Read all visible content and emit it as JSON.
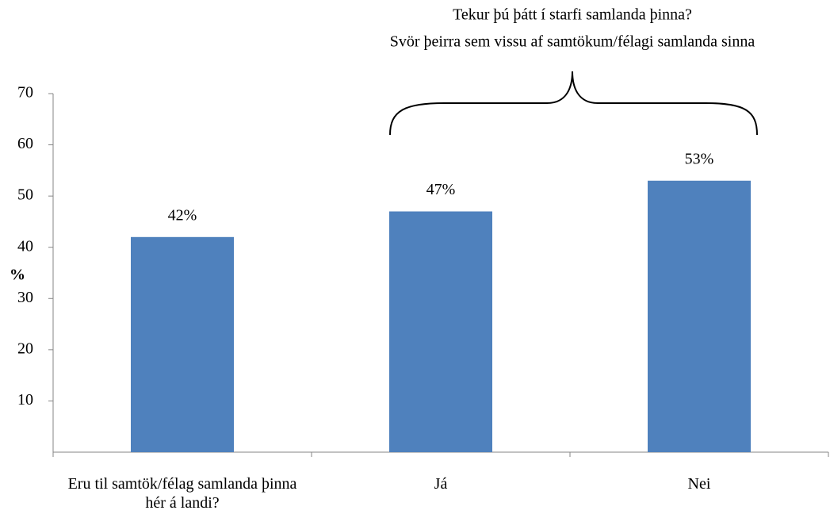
{
  "chart_data": {
    "type": "bar",
    "annotation": [
      "Tekur þú þátt í starfi samlanda þinna?",
      "Svör þeirra sem vissu af samtökum/félagi samlanda sinna"
    ],
    "ylabel": "%",
    "categories": [
      "Eru til samtök/félag samlanda þinna hér á landi?",
      "Já",
      "Nei"
    ],
    "values": [
      42,
      47,
      53
    ],
    "value_labels": [
      "42%",
      "47%",
      "53%"
    ],
    "color": "#4f81bd",
    "ylim": [
      0,
      70
    ],
    "yticks": [
      10,
      20,
      30,
      40,
      50,
      60,
      70
    ],
    "grid": false
  }
}
